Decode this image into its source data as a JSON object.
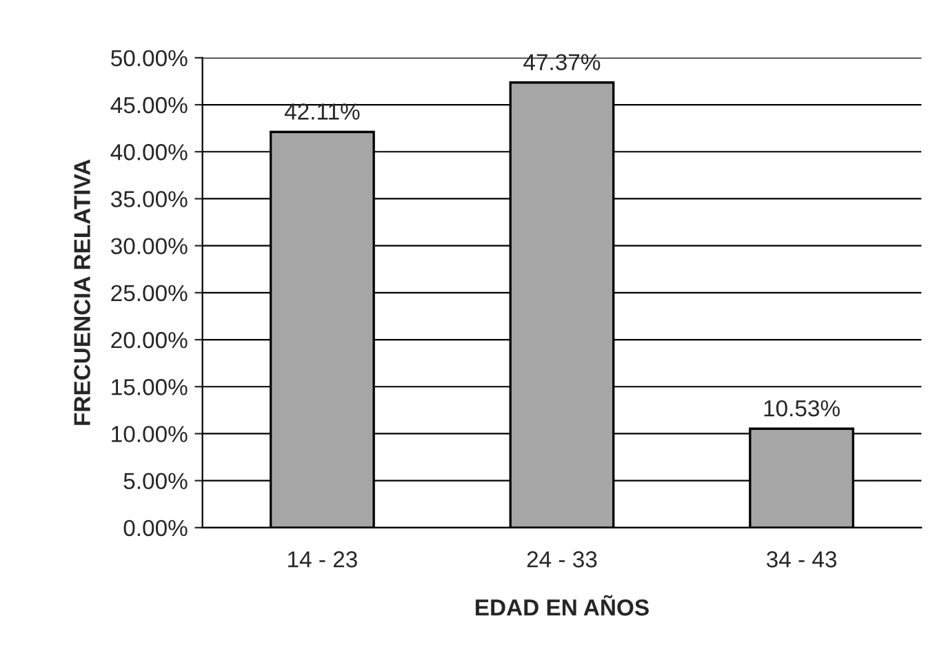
{
  "chart_data": {
    "type": "bar",
    "xlabel": "EDAD EN AÑOS",
    "ylabel": "FRECUENCIA RELATIVA",
    "categories": [
      "14 - 23",
      "24 - 33",
      "34 - 43"
    ],
    "values": [
      42.11,
      47.37,
      10.53
    ],
    "value_labels": [
      "42.11%",
      "47.37%",
      "10.53%"
    ],
    "color": "#a6a6a6",
    "ylim": [
      0,
      50
    ],
    "yticks": [
      {
        "value": 0,
        "label": "0.00%"
      },
      {
        "value": 5,
        "label": "5.00%"
      },
      {
        "value": 10,
        "label": "10.00%"
      },
      {
        "value": 15,
        "label": "15.00%"
      },
      {
        "value": 20,
        "label": "20.00%"
      },
      {
        "value": 25,
        "label": "25.00%"
      },
      {
        "value": 30,
        "label": "30.00%"
      },
      {
        "value": 35,
        "label": "35.00%"
      },
      {
        "value": 40,
        "label": "40.00%"
      },
      {
        "value": 45,
        "label": "45.00%"
      },
      {
        "value": 50,
        "label": "50.00%"
      }
    ],
    "grid": "y"
  }
}
